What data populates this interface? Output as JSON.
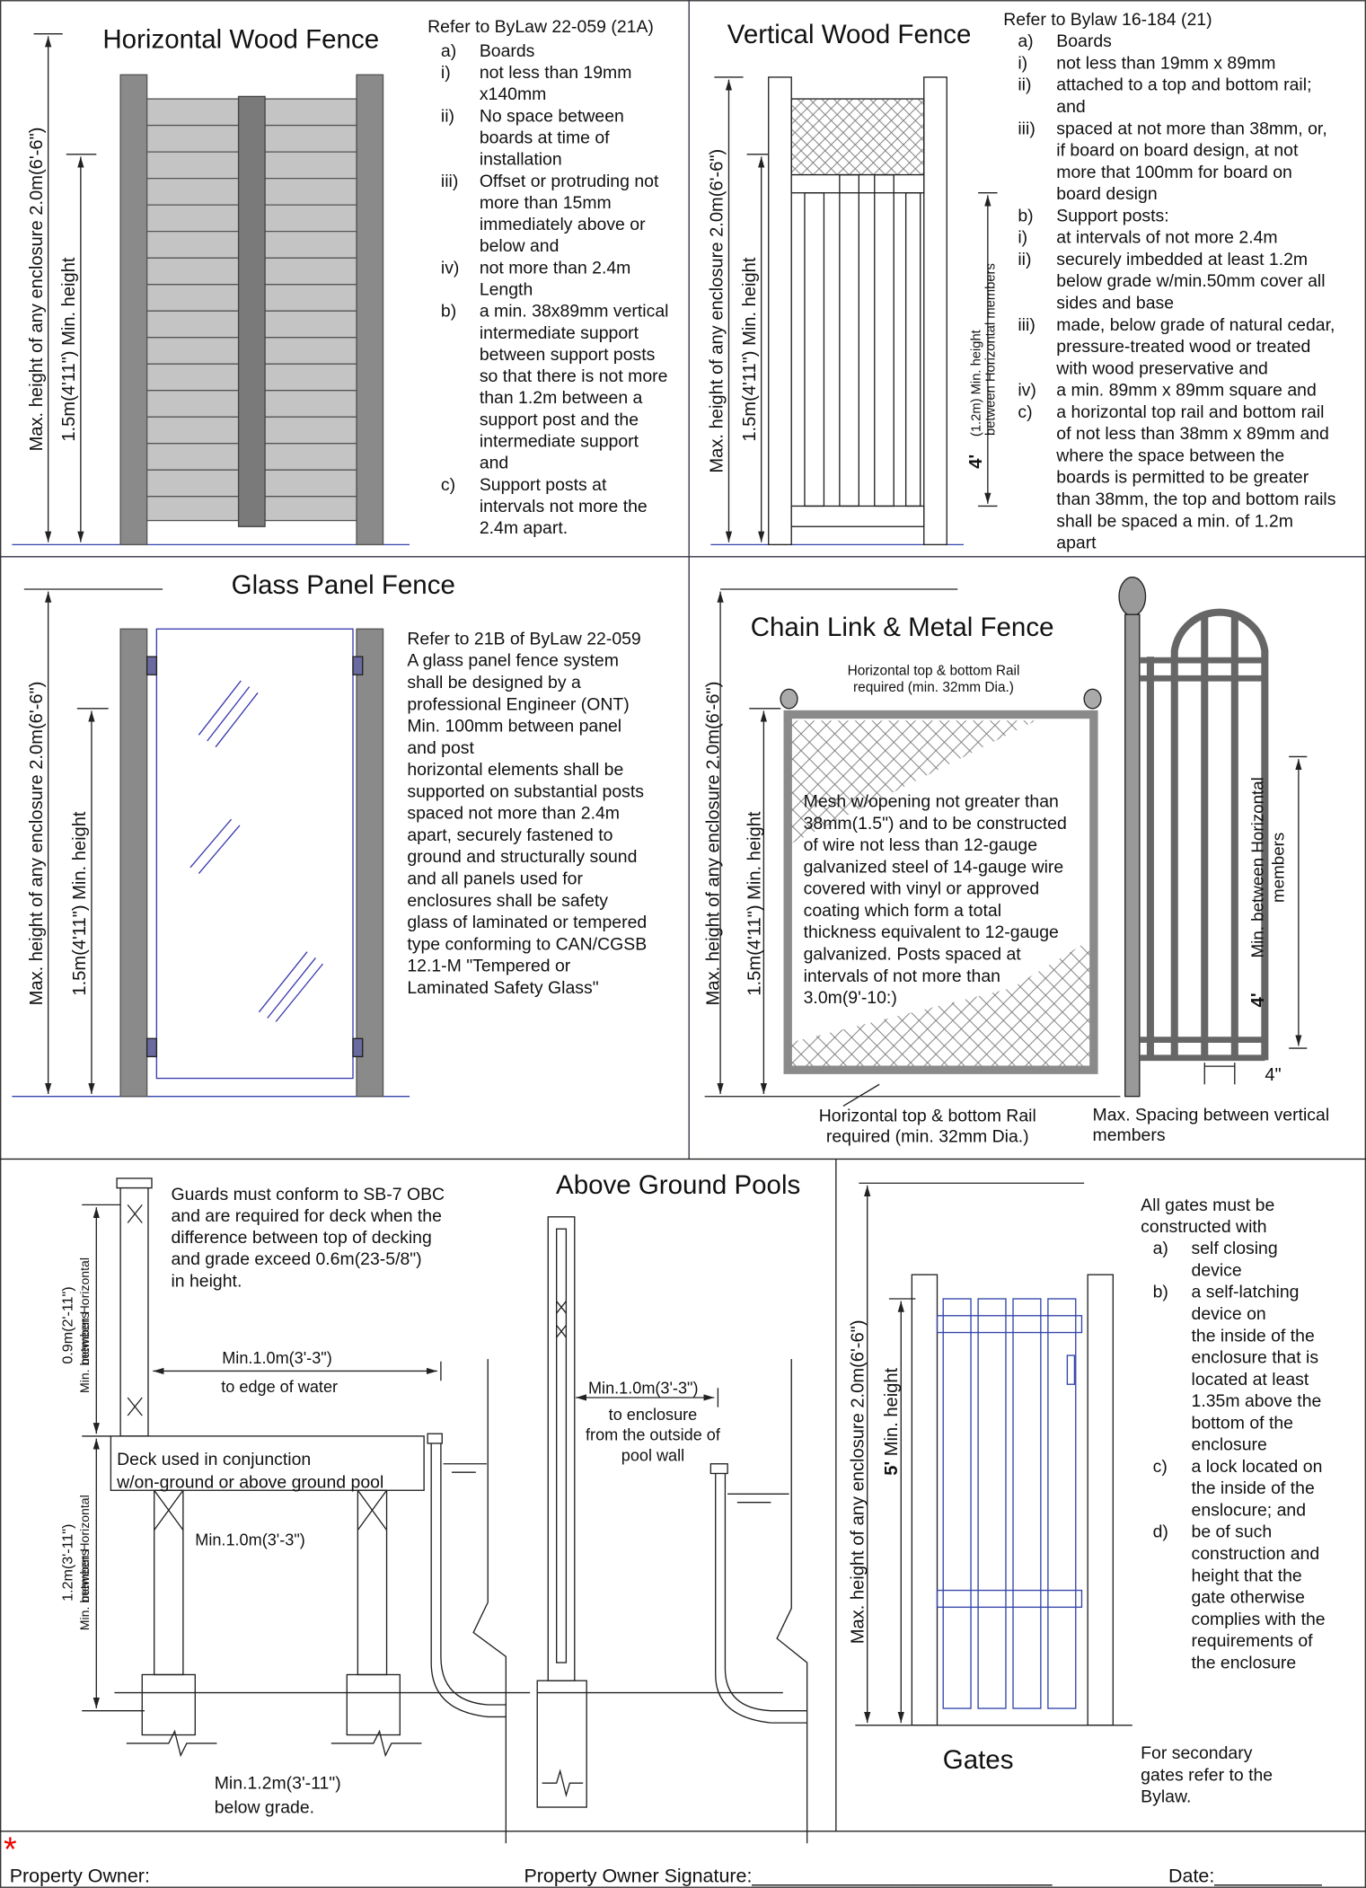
{
  "horizontal_wood_fence": {
    "title": "Horizontal Wood Fence",
    "max_height": "Max. height of any enclosure 2.0m(6'-6\")",
    "min_height": "1.5m(4'11\") Min. height",
    "reference": "Refer to  ByLaw 22-059 (21A)",
    "items": [
      {
        "m": "a)",
        "lines": [
          "Boards"
        ]
      },
      {
        "m": "i)",
        "lines": [
          "not less than 19mm",
          "x140mm"
        ]
      },
      {
        "m": "ii)",
        "lines": [
          "No space between",
          "boards at time of",
          "installation"
        ]
      },
      {
        "m": "iii)",
        "lines": [
          "Offset or protruding not",
          "more than 15mm",
          "immediately above or",
          "below and"
        ]
      },
      {
        "m": "iv)",
        "lines": [
          "not more than 2.4m",
          "Length"
        ]
      },
      {
        "m": "b)",
        "lines": [
          "a min. 38x89mm vertical",
          "intermediate support",
          "between support posts",
          "so that there is not more",
          "than 1.2m between a",
          "support post and the",
          "intermediate support",
          "and"
        ]
      },
      {
        "m": "c)",
        "lines": [
          "Support posts at",
          "intervals not more the",
          "2.4m apart."
        ]
      }
    ]
  },
  "vertical_wood_fence": {
    "title": "Vertical Wood Fence",
    "max_height": "Max. height of any enclosure 2.0m(6'-6\")",
    "min_height": "1.5m(4'11\") Min. height",
    "member_height": "4'",
    "member_note": [
      "(1.2m) Min. height",
      "between Horizontal members"
    ],
    "reference": "Refer to Bylaw 16-184 (21)",
    "items": [
      {
        "m": "a)",
        "lines": [
          "Boards"
        ]
      },
      {
        "m": "i)",
        "lines": [
          "not less than 19mm x 89mm"
        ]
      },
      {
        "m": "ii)",
        "lines": [
          "attached to a top and bottom rail;",
          "and"
        ]
      },
      {
        "m": "iii)",
        "lines": [
          "spaced at not more than 38mm, or,",
          "if board on board design, at not",
          "more that 100mm for board on",
          "board design"
        ]
      },
      {
        "m": "b)",
        "lines": [
          "Support posts:"
        ]
      },
      {
        "m": "i)",
        "lines": [
          "at intervals of not more 2.4m"
        ]
      },
      {
        "m": "ii)",
        "lines": [
          "securely imbedded at least    1.2m",
          "below grade w/min.50mm cover all",
          "sides and base"
        ]
      },
      {
        "m": "iii)",
        "lines": [
          "made, below grade of natural cedar,",
          "pressure-treated wood or treated",
          "with wood preservative and"
        ]
      },
      {
        "m": "iv)",
        "lines": [
          "a min. 89mm x 89mm square and"
        ]
      },
      {
        "m": "c)",
        "lines": [
          "a horizontal top rail and bottom rail",
          "of not less than 38mm x 89mm and",
          "where the space between the",
          "boards is permitted to be greater",
          "than 38mm, the top and bottom rails",
          "shall be spaced a min. of 1.2m",
          "apart"
        ]
      }
    ]
  },
  "glass_panel_fence": {
    "title": "Glass Panel Fence",
    "max_height": "Max. height of any enclosure 2.0m(6'-6\")",
    "min_height": "1.5m(4'11\") Min. height",
    "lines": [
      "Refer to 21B of ByLaw 22-059",
      "A glass panel fence system",
      "shall be designed by a",
      "professional Engineer (ONT)",
      "Min. 100mm between panel",
      "and post",
      "horizontal elements shall be",
      "supported on substantial posts",
      "spaced not more than 2.4m",
      "apart, securely fastened to",
      "ground and structurally sound",
      "and all panels used for",
      "enclosures shall be safety",
      "glass of laminated or tempered",
      "type conforming to CAN/CGSB",
      "12.1-M \"Tempered or",
      "Laminated Safety Glass\""
    ]
  },
  "chain_link_fence": {
    "title": "Chain Link & Metal Fence",
    "max_height": "Max. height of any enclosure 2.0m(6'-6\")",
    "min_height": "1.5m(4'11\") Min. height",
    "top_rail": [
      "Horizontal top & bottom Rail",
      "required (min. 32mm Dia.)"
    ],
    "mesh": [
      "Mesh w/opening not greater than",
      "38mm(1.5\") and to be constructed",
      "of wire not less than 12-gauge",
      "galvanized steel of 14-gauge wire",
      "covered with vinyl or approved",
      "coating which form a total",
      "thickness equivalent  to 12-gauge",
      "galvanized. Posts spaced at",
      "intervals of not more than",
      "3.0m(9'-10:)"
    ],
    "bottom_rail": [
      "Horizontal top & bottom Rail",
      "required (min. 32mm Dia.)"
    ],
    "member_height": "4'",
    "member_note": [
      "Min. between Horizontal",
      "members"
    ],
    "spacing": "4\"",
    "spacing_note": [
      "Max. Spacing between vertical",
      "members"
    ]
  },
  "above_ground_pools": {
    "title": "Above Ground Pools",
    "guards": [
      "Guards must conform to SB-7 OBC",
      "and are required for deck when the",
      "difference between top of decking",
      "and grade exceed 0.6m(23-5/8\")",
      "in height."
    ],
    "guard_height": "0.9m(2'-11\")",
    "guard_note": [
      "Min. between Horizontal",
      "members"
    ],
    "lower_height": "1.2m(3'-11\")",
    "lower_note": [
      "Min. between Horizontal",
      "members"
    ],
    "edge_distance": "Min.1.0m(3'-3\")",
    "edge_note": "to edge of water",
    "deck": [
      "Deck used in conjunction",
      "w/on-ground or above ground pool"
    ],
    "deck_clearance": "Min.1.0m(3'-3\")",
    "below_grade": [
      "Min.1.2m(3'-11\")",
      "below grade."
    ],
    "enclosure_distance": "Min.1.0m(3'-3\")",
    "enclosure_note": [
      "to enclosure",
      "from the outside of",
      "pool wall"
    ]
  },
  "gates": {
    "title": "Gates",
    "max_height": "Max. height of any enclosure 2.0m(6'-6\")",
    "min_number": "5'",
    "min_label": "  Min. height",
    "intro": [
      "All gates must be",
      "constructed with"
    ],
    "items": [
      {
        "m": "a)",
        "lines": [
          "self closing",
          "device"
        ]
      },
      {
        "m": "b)",
        "lines": [
          "a self-latching",
          "device on",
          "the inside of the",
          "enclosure that is",
          "located at least",
          "1.35m above the",
          "bottom of the",
          "enclosure"
        ]
      },
      {
        "m": "c)",
        "lines": [
          "a lock located on",
          "the inside of the",
          "enslocure; and"
        ]
      },
      {
        "m": "d)",
        "lines": [
          "be of such",
          "construction and",
          "height that the",
          "gate otherwise",
          "complies with the",
          "requirements of",
          "the enclosure"
        ]
      }
    ],
    "secondary": [
      "For secondary",
      "gates refer to the",
      "Bylaw."
    ]
  },
  "footer": {
    "required": "*",
    "owner": "Property Owner:",
    "signature": "Property Owner Signature:____________________________",
    "date": "Date:__________"
  }
}
